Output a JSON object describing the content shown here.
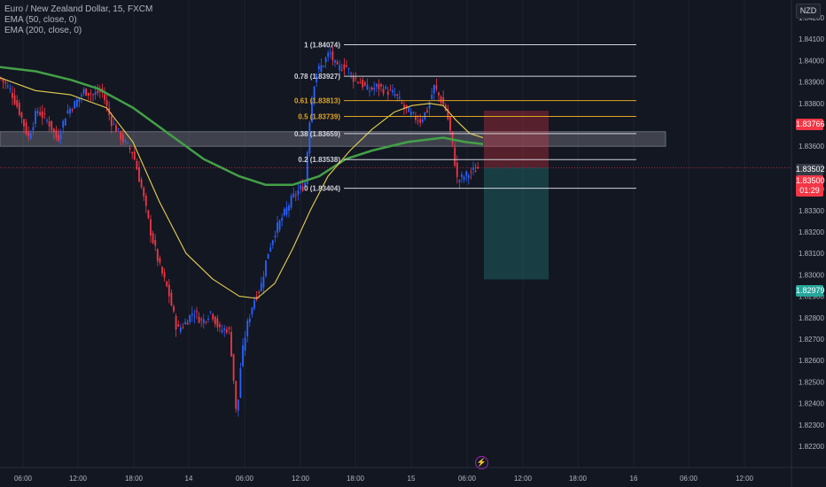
{
  "legend": {
    "symbol": "Euro / New Zealand Dollar, 15, FXCM",
    "ema50": "EMA (50, close, 0)",
    "ema200": "EMA (200, close, 0)"
  },
  "currency_badge": "NZD",
  "price_tags": {
    "sl": "1.83766",
    "entry": "1.83502",
    "last": "1.83500",
    "countdown": "01:29",
    "tp": "1.82979"
  },
  "colors": {
    "background": "#131722",
    "bull": "#2962ff",
    "bear": "#f23645",
    "ema50": "#e6d04f",
    "ema200": "#43a047",
    "fib_white": "#d1d4dc",
    "fib_gold": "#e0a526",
    "stop_zone": "#f23645",
    "target_zone": "#26a69a"
  },
  "chart_data": {
    "type": "candlestick",
    "title": "Euro / New Zealand Dollar, 15, FXCM",
    "ylim": [
      1.8215,
      1.8429
    ],
    "y_ticks": [
      1.842,
      1.841,
      1.84,
      1.839,
      1.838,
      1.837,
      1.836,
      1.835,
      1.834,
      1.833,
      1.832,
      1.831,
      1.83,
      1.829,
      1.828,
      1.827,
      1.826,
      1.825,
      1.824,
      1.823,
      1.822
    ],
    "x_ticks": [
      "06:00",
      "12:00",
      "18:00",
      "14",
      "06:00",
      "12:00",
      "18:00",
      "15",
      "06:00",
      "12:00",
      "18:00",
      "16",
      "06:00",
      "12:00"
    ],
    "price_path": [
      [
        0,
        1.8392
      ],
      [
        12,
        1.8386
      ],
      [
        22,
        1.8376
      ],
      [
        32,
        1.8364
      ],
      [
        42,
        1.8377
      ],
      [
        55,
        1.8371
      ],
      [
        65,
        1.8363
      ],
      [
        75,
        1.8376
      ],
      [
        85,
        1.838
      ],
      [
        95,
        1.8386
      ],
      [
        105,
        1.8384
      ],
      [
        115,
        1.8386
      ],
      [
        125,
        1.8372
      ],
      [
        140,
        1.8362
      ],
      [
        150,
        1.8357
      ],
      [
        160,
        1.834
      ],
      [
        170,
        1.832
      ],
      [
        180,
        1.8304
      ],
      [
        190,
        1.8292
      ],
      [
        200,
        1.8274
      ],
      [
        210,
        1.8278
      ],
      [
        218,
        1.8283
      ],
      [
        228,
        1.8278
      ],
      [
        238,
        1.8283
      ],
      [
        248,
        1.8274
      ],
      [
        258,
        1.8275
      ],
      [
        262,
        1.826
      ],
      [
        267,
        1.8232
      ],
      [
        272,
        1.826
      ],
      [
        278,
        1.8275
      ],
      [
        286,
        1.8288
      ],
      [
        294,
        1.8294
      ],
      [
        302,
        1.831
      ],
      [
        310,
        1.832
      ],
      [
        320,
        1.8328
      ],
      [
        330,
        1.8336
      ],
      [
        338,
        1.834
      ],
      [
        344,
        1.8342
      ],
      [
        350,
        1.8376
      ],
      [
        356,
        1.8394
      ],
      [
        364,
        1.8398
      ],
      [
        372,
        1.8404
      ],
      [
        380,
        1.8396
      ],
      [
        390,
        1.8398
      ],
      [
        398,
        1.8392
      ],
      [
        406,
        1.839
      ],
      [
        416,
        1.8386
      ],
      [
        426,
        1.8388
      ],
      [
        436,
        1.8386
      ],
      [
        446,
        1.8384
      ],
      [
        456,
        1.8378
      ],
      [
        466,
        1.8374
      ],
      [
        474,
        1.8372
      ],
      [
        482,
        1.8377
      ],
      [
        490,
        1.8388
      ],
      [
        497,
        1.8382
      ],
      [
        504,
        1.8376
      ],
      [
        510,
        1.8362
      ],
      [
        516,
        1.8344
      ],
      [
        524,
        1.8346
      ],
      [
        532,
        1.8348
      ],
      [
        540,
        1.835
      ]
    ],
    "ema50": [
      [
        0,
        1.8392
      ],
      [
        40,
        1.8386
      ],
      [
        80,
        1.8384
      ],
      [
        120,
        1.8378
      ],
      [
        150,
        1.8362
      ],
      [
        180,
        1.8334
      ],
      [
        210,
        1.831
      ],
      [
        240,
        1.8298
      ],
      [
        270,
        1.829
      ],
      [
        290,
        1.8289
      ],
      [
        310,
        1.8296
      ],
      [
        330,
        1.8312
      ],
      [
        350,
        1.833
      ],
      [
        370,
        1.8346
      ],
      [
        395,
        1.8358
      ],
      [
        420,
        1.8368
      ],
      [
        445,
        1.8376
      ],
      [
        465,
        1.8379
      ],
      [
        485,
        1.838
      ],
      [
        500,
        1.8379
      ],
      [
        515,
        1.8372
      ],
      [
        530,
        1.8366
      ],
      [
        545,
        1.8364
      ]
    ],
    "ema200": [
      [
        0,
        1.8397
      ],
      [
        40,
        1.8395
      ],
      [
        80,
        1.8391
      ],
      [
        110,
        1.8387
      ],
      [
        150,
        1.8378
      ],
      [
        190,
        1.8366
      ],
      [
        230,
        1.8354
      ],
      [
        270,
        1.8346
      ],
      [
        300,
        1.8342
      ],
      [
        330,
        1.8342
      ],
      [
        360,
        1.8346
      ],
      [
        390,
        1.8354
      ],
      [
        420,
        1.8358
      ],
      [
        460,
        1.8362
      ],
      [
        500,
        1.8364
      ],
      [
        525,
        1.8362
      ],
      [
        545,
        1.8361
      ]
    ],
    "fib_levels": [
      {
        "ratio": "1",
        "price": 1.84074,
        "label": "1 (1.84074)",
        "color": "white"
      },
      {
        "ratio": "0.78",
        "price": 1.83927,
        "label": "0.78 (1.83927)",
        "color": "white"
      },
      {
        "ratio": "0.61",
        "price": 1.83813,
        "label": "0.61 (1.83813)",
        "color": "gold"
      },
      {
        "ratio": "0.5",
        "price": 1.83739,
        "label": "0.5 (1.83739)",
        "color": "gold"
      },
      {
        "ratio": "0.38",
        "price": 1.83659,
        "label": "0.38 (1.83659)",
        "color": "white"
      },
      {
        "ratio": "0.2",
        "price": 1.83538,
        "label": "0.2 (1.83538)",
        "color": "white"
      },
      {
        "ratio": "0",
        "price": 1.83404,
        "label": "0 (1.83404)",
        "color": "white"
      }
    ],
    "resistance_zone": [
      1.836,
      1.83668
    ],
    "position": {
      "direction": "short",
      "entry": 1.83502,
      "stop": 1.83766,
      "target": 1.82979
    },
    "last_price": 1.835
  }
}
